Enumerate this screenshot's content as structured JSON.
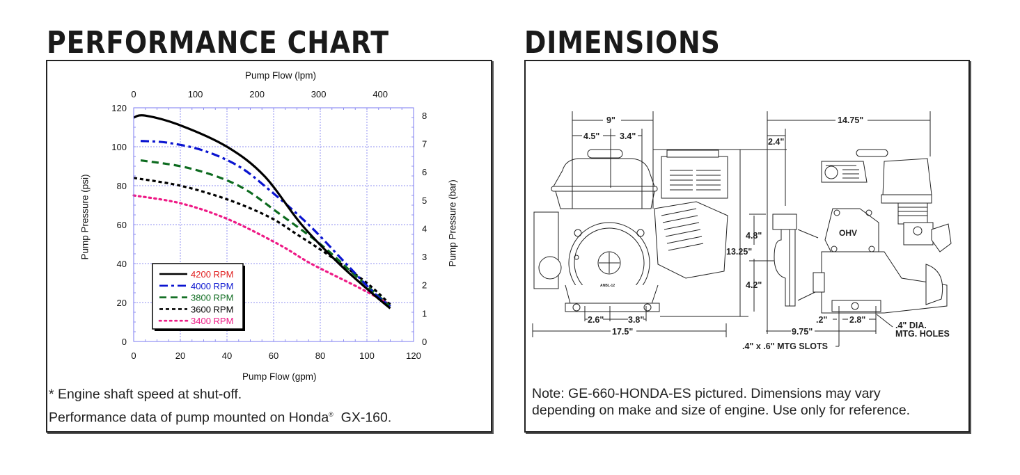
{
  "performance": {
    "title": "PERFORMANCE CHART",
    "notes": {
      "line1": "* Engine shaft speed at shut-off.",
      "line2_prefix": "Performance data of pump mounted on Honda",
      "line2_reg": "®",
      "line2_suffix": "  GX-160."
    }
  },
  "dimensions": {
    "title": "DIMENSIONS",
    "labels": {
      "d9": "9\"",
      "d4_5": "4.5\"",
      "d3_4": "3.4\"",
      "d14_75": "14.75\"",
      "d2_4": "2.4\"",
      "d4_8": "4.8\"",
      "d13_25": "13.25\"",
      "d4_2": "4.2\"",
      "d2_6": "2.6\"",
      "d3_8": "3.8\"",
      "d17_5": "17.5\"",
      "d0_2": ".2\"",
      "d2_8": "2.8\"",
      "d9_75": "9.75\"",
      "holes_1": ".4\" DIA.",
      "holes_2": "MTG. HOLES",
      "slots": ".4\" x .6\" MTG SLOTS",
      "ohv": "OHV"
    },
    "note_line1": "Note:  GE-660-HONDA-ES pictured.  Dimensions may vary",
    "note_line2": "depending on make and size of engine.  Use only for reference."
  },
  "chart_data": {
    "type": "line",
    "title": "",
    "xlabel": "Pump Flow (gpm)",
    "ylabel": "Pump Pressure (psi)",
    "x2label": "Pump Flow (lpm)",
    "y2label": "Pump Pressure (bar)",
    "xlim": [
      0,
      120
    ],
    "ylim": [
      0,
      120
    ],
    "x2lim": [
      0,
      454
    ],
    "y2lim": [
      0,
      8.27
    ],
    "xticks": [
      0,
      20,
      40,
      60,
      80,
      100,
      120
    ],
    "yticks": [
      0,
      20,
      40,
      60,
      80,
      100,
      120
    ],
    "x2ticks": [
      0,
      100,
      200,
      300,
      400
    ],
    "y2ticks": [
      0,
      1,
      2,
      3,
      4,
      5,
      6,
      7,
      8
    ],
    "grid": true,
    "legend_position": "lower-left",
    "series": [
      {
        "name": "4200 RPM",
        "color": "#000000",
        "label_color": "#e01b1b",
        "style": "solid",
        "x": [
          0,
          5,
          20,
          40,
          56,
          72,
          88,
          102,
          110
        ],
        "y": [
          115,
          116,
          111,
          100,
          85,
          60,
          40,
          25,
          17
        ]
      },
      {
        "name": "4000 RPM",
        "color": "#0a14d0",
        "label_color": "#0a14d0",
        "style": "dashdot",
        "x": [
          3,
          15,
          30,
          45,
          58,
          75,
          91,
          103,
          110
        ],
        "y": [
          103,
          102,
          98,
          90,
          78,
          60,
          40,
          25,
          18
        ]
      },
      {
        "name": "3800 RPM",
        "color": "#0d6b1f",
        "label_color": "#0d6b1f",
        "style": "dashed",
        "x": [
          3,
          20,
          35,
          48,
          62,
          80,
          94,
          110
        ],
        "y": [
          93,
          90,
          85,
          78,
          66,
          50,
          35,
          18
        ]
      },
      {
        "name": "3600 RPM",
        "color": "#000000",
        "label_color": "#000000",
        "style": "short-dash",
        "x": [
          0,
          20,
          40,
          58,
          70,
          84,
          100,
          110
        ],
        "y": [
          84,
          80,
          73,
          64,
          55,
          44,
          30,
          19
        ]
      },
      {
        "name": "3400 RPM",
        "color": "#ee1a86",
        "label_color": "#ee1a86",
        "style": "dotted",
        "x": [
          0,
          20,
          40,
          62,
          76,
          96,
          110
        ],
        "y": [
          75,
          71,
          63,
          50,
          40,
          28,
          19
        ]
      }
    ]
  }
}
